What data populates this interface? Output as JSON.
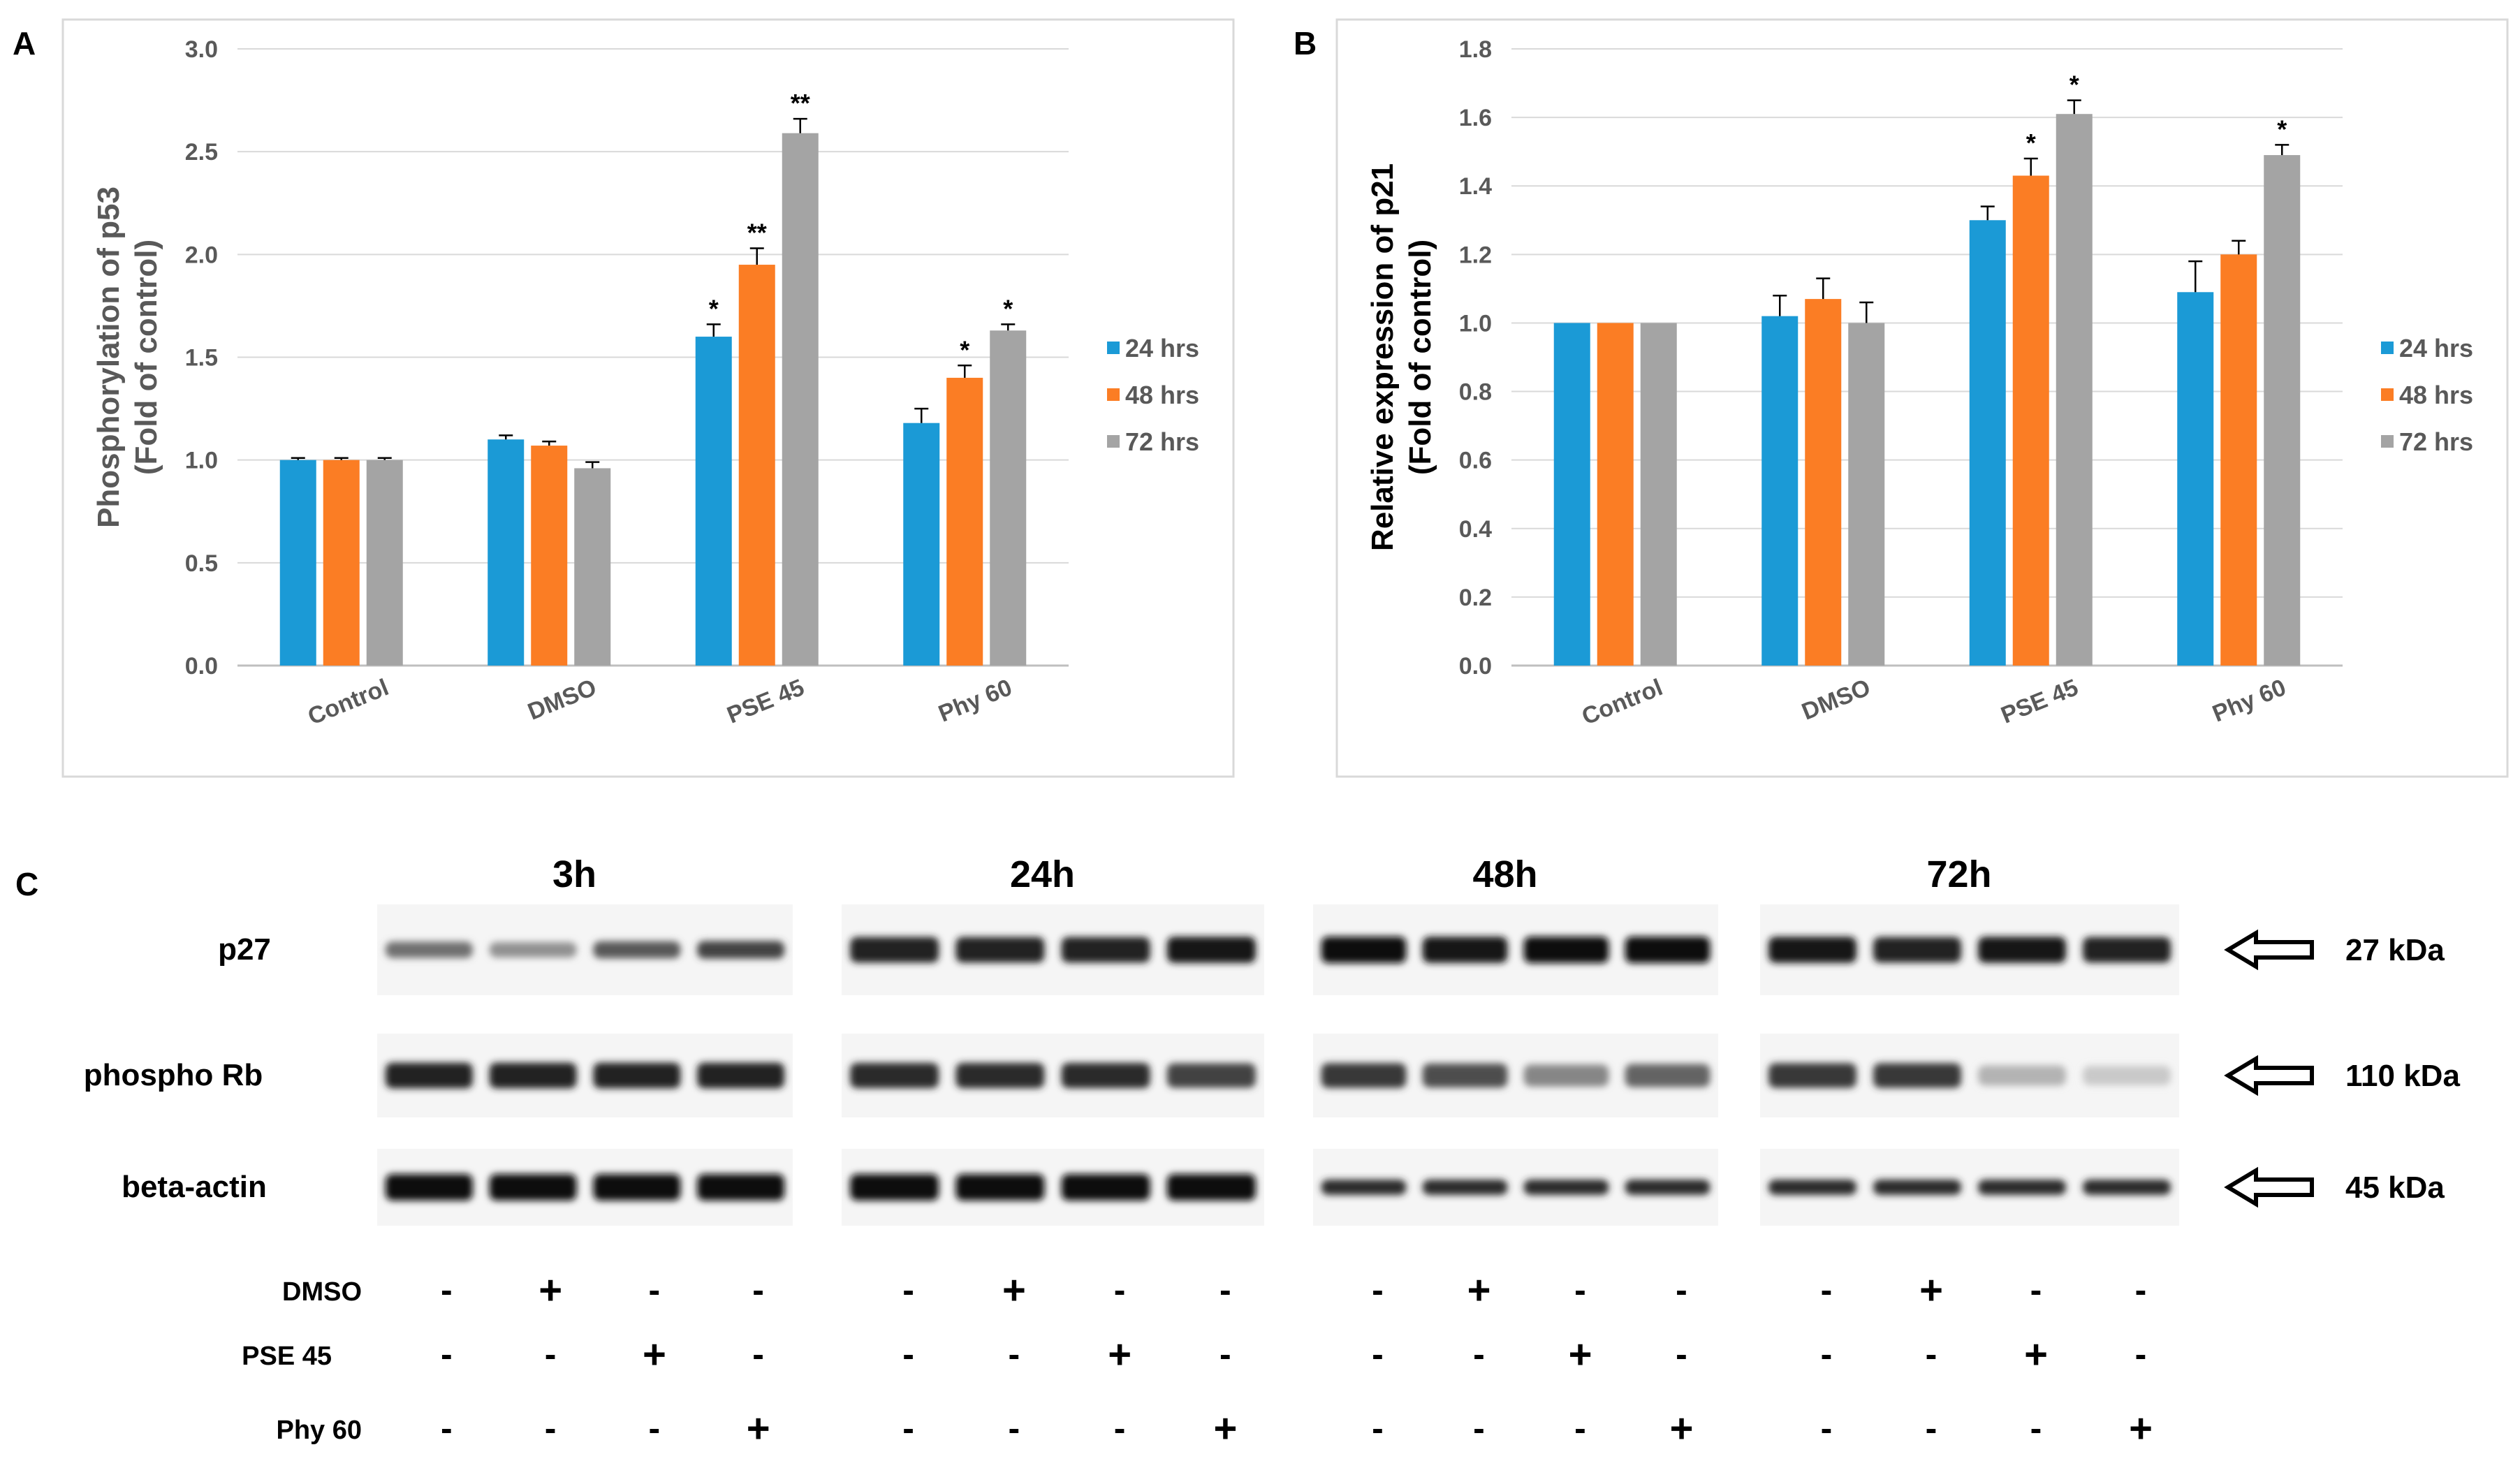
{
  "chart_data": [
    {
      "panel": "A",
      "type": "bar",
      "categories": [
        "Control",
        "DMSO",
        "PSE 45",
        "Phy 60"
      ],
      "series": [
        {
          "name": "24 hrs",
          "color": "#1b9ad6",
          "values": [
            1.0,
            1.1,
            1.6,
            1.18
          ],
          "errors": [
            0.01,
            0.02,
            0.06,
            0.07
          ],
          "sig": [
            "",
            "",
            "*",
            ""
          ]
        },
        {
          "name": "48 hrs",
          "color": "#fb7d24",
          "values": [
            1.0,
            1.07,
            1.95,
            1.4
          ],
          "errors": [
            0.01,
            0.02,
            0.08,
            0.06
          ],
          "sig": [
            "",
            "",
            "**",
            "*"
          ]
        },
        {
          "name": "72 hrs",
          "color": "#a4a4a4",
          "values": [
            1.0,
            0.96,
            2.59,
            1.63
          ],
          "errors": [
            0.01,
            0.03,
            0.07,
            0.03
          ],
          "sig": [
            "",
            "",
            "**",
            "*"
          ]
        }
      ],
      "ylim": [
        0,
        3.0
      ],
      "yticks": [
        "0.0",
        "0.5",
        "1.0",
        "1.5",
        "2.0",
        "2.5",
        "3.0"
      ],
      "ylabel_line1": "Phosphorylation of p53",
      "ylabel_line2": "(Fold of control)",
      "grid": true,
      "legend": "right"
    },
    {
      "panel": "B",
      "type": "bar",
      "categories": [
        "Control",
        "DMSO",
        "PSE 45",
        "Phy 60"
      ],
      "series": [
        {
          "name": "24 hrs",
          "color": "#1b9ad6",
          "values": [
            1.0,
            1.02,
            1.3,
            1.09
          ],
          "errors": [
            0.0,
            0.06,
            0.04,
            0.09
          ],
          "sig": [
            "",
            "",
            "",
            ""
          ]
        },
        {
          "name": "48 hrs",
          "color": "#fb7d24",
          "values": [
            1.0,
            1.07,
            1.43,
            1.2
          ],
          "errors": [
            0.0,
            0.06,
            0.05,
            0.04
          ],
          "sig": [
            "",
            "",
            "*",
            ""
          ]
        },
        {
          "name": "72 hrs",
          "color": "#a4a4a4",
          "values": [
            1.0,
            1.0,
            1.61,
            1.49
          ],
          "errors": [
            0.0,
            0.06,
            0.04,
            0.03
          ],
          "sig": [
            "",
            "",
            "*",
            "*"
          ]
        }
      ],
      "ylim": [
        0,
        1.8
      ],
      "yticks": [
        "0.0",
        "0.2",
        "0.4",
        "0.6",
        "0.8",
        "1.0",
        "1.2",
        "1.4",
        "1.6",
        "1.8"
      ],
      "ylabel_line1": "Relative expression of p21",
      "ylabel_line2": "(Fold of control)",
      "grid": true,
      "legend": "right"
    }
  ],
  "panel_labels": {
    "a": "A",
    "b": "B",
    "c": "C"
  },
  "blot": {
    "timepoints": [
      "3h",
      "24h",
      "48h",
      "72h"
    ],
    "proteins": [
      {
        "name": "p27",
        "kda": "27 kDa",
        "intensity": [
          [
            0.55,
            0.4,
            0.65,
            0.75
          ],
          [
            0.9,
            0.9,
            0.9,
            0.95
          ],
          [
            1.0,
            0.95,
            1.0,
            1.0
          ],
          [
            0.95,
            0.9,
            0.95,
            0.9
          ]
        ]
      },
      {
        "name": "phospho Rb",
        "kda": "110 kDa",
        "intensity": [
          [
            0.9,
            0.9,
            0.9,
            0.9
          ],
          [
            0.85,
            0.85,
            0.85,
            0.75
          ],
          [
            0.8,
            0.7,
            0.45,
            0.6
          ],
          [
            0.8,
            0.8,
            0.25,
            0.15
          ]
        ]
      },
      {
        "name": "beta-actin",
        "kda": "45 kDa",
        "intensity": [
          [
            1.0,
            1.0,
            1.0,
            1.0
          ],
          [
            1.0,
            1.0,
            1.0,
            1.0
          ],
          [
            0.85,
            0.85,
            0.85,
            0.85
          ],
          [
            0.85,
            0.85,
            0.85,
            0.85
          ]
        ]
      }
    ],
    "treatments": [
      {
        "name": "DMSO",
        "signs": [
          "-",
          "+",
          "-",
          "-"
        ]
      },
      {
        "name": "PSE 45",
        "signs": [
          "-",
          "-",
          "+",
          "-"
        ]
      },
      {
        "name": "Phy 60",
        "signs": [
          "-",
          "-",
          "-",
          "+"
        ]
      }
    ]
  }
}
